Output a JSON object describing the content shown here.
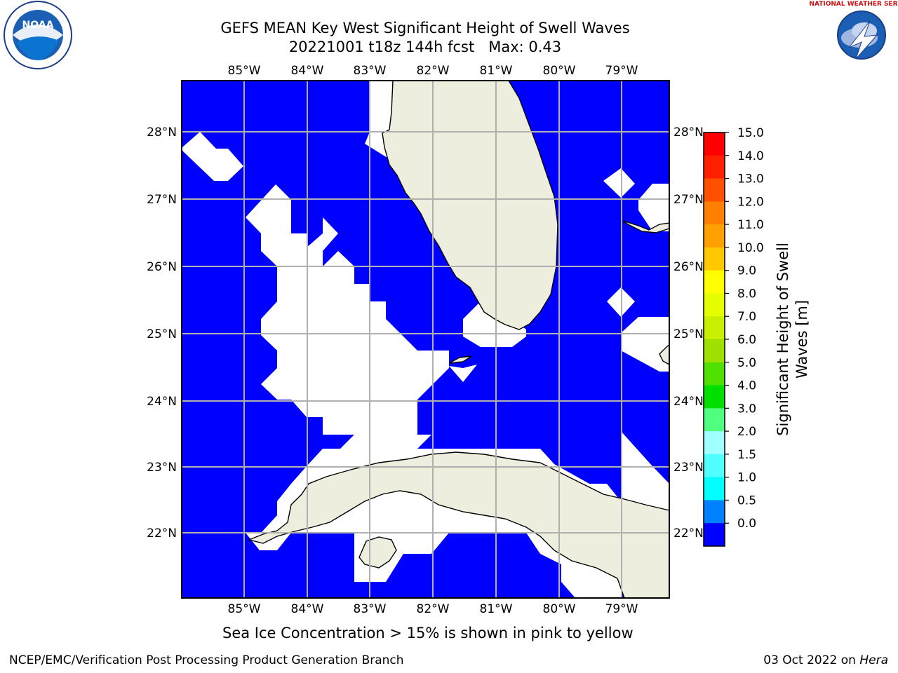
{
  "title": "GEFS MEAN Key West Significant Height of Swell Waves",
  "subtitle": "20221001 t18z 144h fcst   Max: 0.43",
  "note": "Sea Ice Concentration > 15% is shown in pink to yellow",
  "footer_left": "NCEP/EMC/Verification Post Processing Product Generation Branch",
  "footer_date": "03 Oct 2022 on ",
  "footer_machine": "Hera",
  "logos": {
    "left": "noaa-logo",
    "right": "nws-logo",
    "noaa_text": "NOAA",
    "nws_text": "NATIONAL WEATHER SERVICE"
  },
  "map": {
    "lon_labels": [
      "85°W",
      "84°W",
      "83°W",
      "82°W",
      "81°W",
      "80°W",
      "79°W"
    ],
    "lat_labels": [
      "28°N",
      "27°N",
      "26°N",
      "25°N",
      "24°N",
      "23°N",
      "22°N"
    ],
    "colors": {
      "ocean_value": "#0000ff",
      "land": "#eeeedf",
      "masked": "#ffffff",
      "grid": "#b0b0b0"
    }
  },
  "colorbar": {
    "label_line1": "Significant Height of Swell",
    "label_line2": "Waves [m]",
    "ticks": [
      "15.0",
      "14.0",
      "13.0",
      "12.0",
      "11.0",
      "10.0",
      "9.0",
      "8.0",
      "7.0",
      "6.0",
      "5.0",
      "4.0",
      "3.0",
      "2.0",
      "1.5",
      "1.0",
      "0.5",
      "0.0"
    ],
    "colors_top_to_bottom": [
      "#ff0000",
      "#ff2000",
      "#ff5000",
      "#ff8000",
      "#ffa000",
      "#ffc800",
      "#ffff00",
      "#e6ff00",
      "#c8f000",
      "#a0e000",
      "#50e000",
      "#00e000",
      "#50ff80",
      "#a0ffff",
      "#50ffff",
      "#00ffff",
      "#0080ff",
      "#0000ff"
    ]
  }
}
